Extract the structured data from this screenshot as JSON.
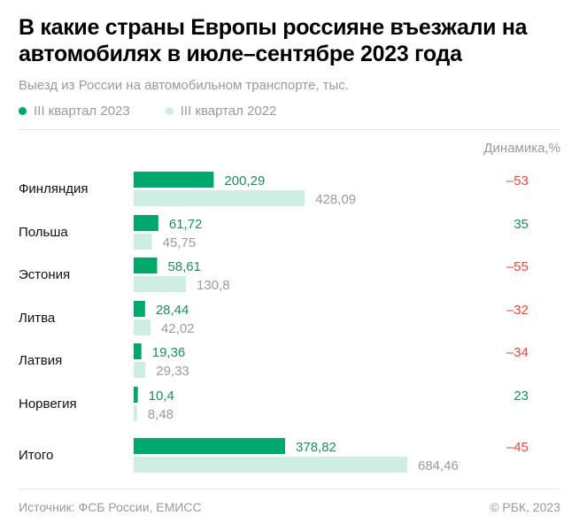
{
  "title": "В какие страны Европы россияне въезжали на автомобилях в июле–сентябре 2023 года",
  "subtitle": "Выезд из России на автомобильном транспорте, тыс.",
  "legend": [
    {
      "label": "III квартал 2023",
      "color": "#00a86b"
    },
    {
      "label": "III квартал 2022",
      "color": "#cdeee0"
    }
  ],
  "dynamics_header": "Динамика,%",
  "source": "Источник: ФСБ России, ЕМИСС",
  "copyright": "© РБК, 2023",
  "colors": {
    "positive": "#1a8f5c",
    "negative": "#f0453a",
    "value2022": "#9a9a9a"
  },
  "chart_data": {
    "type": "bar",
    "orientation": "horizontal",
    "categories": [
      "Финляндия",
      "Польша",
      "Эстония",
      "Литва",
      "Латвия",
      "Норвегия",
      "Итого"
    ],
    "series": [
      {
        "name": "III квартал 2023",
        "values": [
          200.29,
          61.72,
          58.61,
          28.44,
          19.36,
          10.4,
          378.82
        ],
        "labels": [
          "200,29",
          "61,72",
          "58,61",
          "28,44",
          "19,36",
          "10,4",
          "378,82"
        ]
      },
      {
        "name": "III квартал 2022",
        "values": [
          428.09,
          45.75,
          130.8,
          42.02,
          29.33,
          8.48,
          684.46
        ],
        "labels": [
          "428,09",
          "45,75",
          "130,8",
          "42,02",
          "29,33",
          "8,48",
          "684,46"
        ]
      }
    ],
    "dynamics": [
      "–53",
      "35",
      "–55",
      "–32",
      "–34",
      "23",
      "–45"
    ]
  }
}
